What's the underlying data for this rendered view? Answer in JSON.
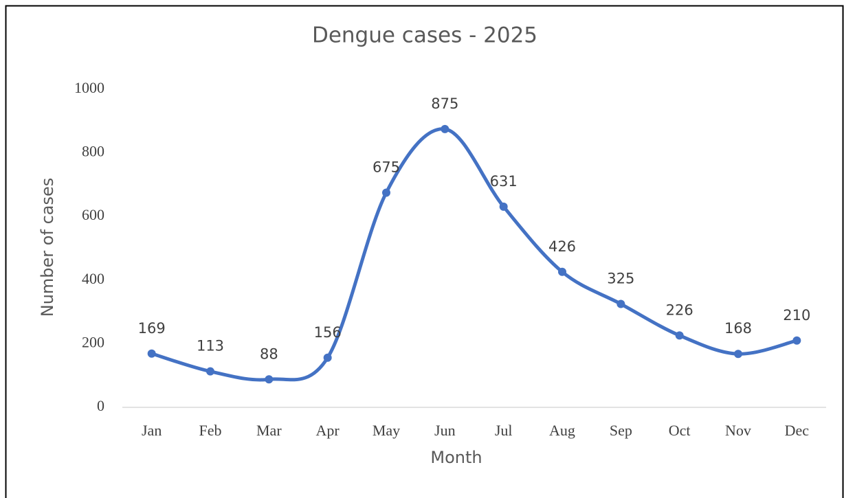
{
  "chart_data": {
    "type": "line",
    "title": "Dengue cases - 2025",
    "x_label": "Month",
    "y_label": "Number of cases",
    "categories": [
      "Jan",
      "Feb",
      "Mar",
      "Apr",
      "May",
      "Jun",
      "Jul",
      "Aug",
      "Sep",
      "Oct",
      "Nov",
      "Dec"
    ],
    "series": [
      {
        "name": "Dengue cases",
        "color": "#4472c4",
        "values": [
          169,
          113,
          88,
          156,
          675,
          875,
          631,
          426,
          325,
          226,
          168,
          210
        ]
      }
    ],
    "ylim": [
      0,
      1000
    ],
    "yticks": [
      0,
      200,
      400,
      600,
      800,
      1000
    ],
    "grid": false,
    "smooth": true
  }
}
